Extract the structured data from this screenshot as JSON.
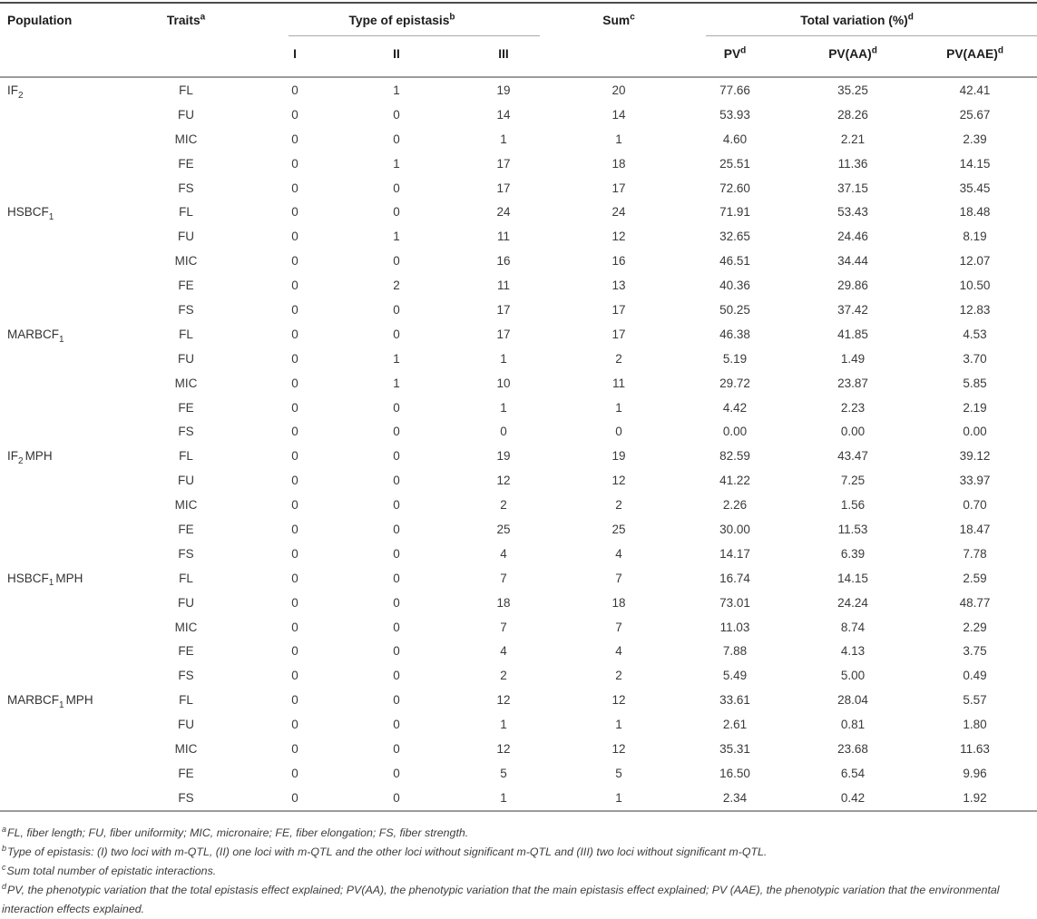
{
  "table": {
    "headers": {
      "population": "Population",
      "traits": {
        "base": "Traits",
        "sup": "a"
      },
      "epistasis_group": {
        "base": "Type of epistasis",
        "sup": "b"
      },
      "epistasis_cols": [
        "I",
        "II",
        "III"
      ],
      "sum": {
        "base": "Sum",
        "sup": "c"
      },
      "variation_group": {
        "base": "Total variation (%)",
        "sup": "d"
      },
      "variation_cols": [
        {
          "base": "PV",
          "sup": "d"
        },
        {
          "base": "PV(AA)",
          "sup": "d"
        },
        {
          "base": "PV(AAE)",
          "sup": "d"
        }
      ]
    },
    "groups": [
      {
        "population": {
          "pre": "IF",
          "sub": "2",
          "post": ""
        },
        "rows": [
          {
            "trait": "FL",
            "I": "0",
            "II": "1",
            "III": "19",
            "sum": "20",
            "pv": "77.66",
            "pv_aa": "35.25",
            "pv_aae": "42.41"
          },
          {
            "trait": "FU",
            "I": "0",
            "II": "0",
            "III": "14",
            "sum": "14",
            "pv": "53.93",
            "pv_aa": "28.26",
            "pv_aae": "25.67"
          },
          {
            "trait": "MIC",
            "I": "0",
            "II": "0",
            "III": "1",
            "sum": "1",
            "pv": "4.60",
            "pv_aa": "2.21",
            "pv_aae": "2.39"
          },
          {
            "trait": "FE",
            "I": "0",
            "II": "1",
            "III": "17",
            "sum": "18",
            "pv": "25.51",
            "pv_aa": "11.36",
            "pv_aae": "14.15"
          },
          {
            "trait": "FS",
            "I": "0",
            "II": "0",
            "III": "17",
            "sum": "17",
            "pv": "72.60",
            "pv_aa": "37.15",
            "pv_aae": "35.45"
          }
        ]
      },
      {
        "population": {
          "pre": "HSBCF",
          "sub": "1",
          "post": ""
        },
        "rows": [
          {
            "trait": "FL",
            "I": "0",
            "II": "0",
            "III": "24",
            "sum": "24",
            "pv": "71.91",
            "pv_aa": "53.43",
            "pv_aae": "18.48"
          },
          {
            "trait": "FU",
            "I": "0",
            "II": "1",
            "III": "11",
            "sum": "12",
            "pv": "32.65",
            "pv_aa": "24.46",
            "pv_aae": "8.19"
          },
          {
            "trait": "MIC",
            "I": "0",
            "II": "0",
            "III": "16",
            "sum": "16",
            "pv": "46.51",
            "pv_aa": "34.44",
            "pv_aae": "12.07"
          },
          {
            "trait": "FE",
            "I": "0",
            "II": "2",
            "III": "11",
            "sum": "13",
            "pv": "40.36",
            "pv_aa": "29.86",
            "pv_aae": "10.50"
          },
          {
            "trait": "FS",
            "I": "0",
            "II": "0",
            "III": "17",
            "sum": "17",
            "pv": "50.25",
            "pv_aa": "37.42",
            "pv_aae": "12.83"
          }
        ]
      },
      {
        "population": {
          "pre": "MARBCF",
          "sub": "1",
          "post": ""
        },
        "rows": [
          {
            "trait": "FL",
            "I": "0",
            "II": "0",
            "III": "17",
            "sum": "17",
            "pv": "46.38",
            "pv_aa": "41.85",
            "pv_aae": "4.53"
          },
          {
            "trait": "FU",
            "I": "0",
            "II": "1",
            "III": "1",
            "sum": "2",
            "pv": "5.19",
            "pv_aa": "1.49",
            "pv_aae": "3.70"
          },
          {
            "trait": "MIC",
            "I": "0",
            "II": "1",
            "III": "10",
            "sum": "11",
            "pv": "29.72",
            "pv_aa": "23.87",
            "pv_aae": "5.85"
          },
          {
            "trait": "FE",
            "I": "0",
            "II": "0",
            "III": "1",
            "sum": "1",
            "pv": "4.42",
            "pv_aa": "2.23",
            "pv_aae": "2.19"
          },
          {
            "trait": "FS",
            "I": "0",
            "II": "0",
            "III": "0",
            "sum": "0",
            "pv": "0.00",
            "pv_aa": "0.00",
            "pv_aae": "0.00"
          }
        ]
      },
      {
        "population": {
          "pre": "IF",
          "sub": "2",
          "post": "MPH"
        },
        "rows": [
          {
            "trait": "FL",
            "I": "0",
            "II": "0",
            "III": "19",
            "sum": "19",
            "pv": "82.59",
            "pv_aa": "43.47",
            "pv_aae": "39.12"
          },
          {
            "trait": "FU",
            "I": "0",
            "II": "0",
            "III": "12",
            "sum": "12",
            "pv": "41.22",
            "pv_aa": "7.25",
            "pv_aae": "33.97"
          },
          {
            "trait": "MIC",
            "I": "0",
            "II": "0",
            "III": "2",
            "sum": "2",
            "pv": "2.26",
            "pv_aa": "1.56",
            "pv_aae": "0.70"
          },
          {
            "trait": "FE",
            "I": "0",
            "II": "0",
            "III": "25",
            "sum": "25",
            "pv": "30.00",
            "pv_aa": "11.53",
            "pv_aae": "18.47"
          },
          {
            "trait": "FS",
            "I": "0",
            "II": "0",
            "III": "4",
            "sum": "4",
            "pv": "14.17",
            "pv_aa": "6.39",
            "pv_aae": "7.78"
          }
        ]
      },
      {
        "population": {
          "pre": "HSBCF",
          "sub": "1",
          "post": "MPH"
        },
        "rows": [
          {
            "trait": "FL",
            "I": "0",
            "II": "0",
            "III": "7",
            "sum": "7",
            "pv": "16.74",
            "pv_aa": "14.15",
            "pv_aae": "2.59"
          },
          {
            "trait": "FU",
            "I": "0",
            "II": "0",
            "III": "18",
            "sum": "18",
            "pv": "73.01",
            "pv_aa": "24.24",
            "pv_aae": "48.77"
          },
          {
            "trait": "MIC",
            "I": "0",
            "II": "0",
            "III": "7",
            "sum": "7",
            "pv": "11.03",
            "pv_aa": "8.74",
            "pv_aae": "2.29"
          },
          {
            "trait": "FE",
            "I": "0",
            "II": "0",
            "III": "4",
            "sum": "4",
            "pv": "7.88",
            "pv_aa": "4.13",
            "pv_aae": "3.75"
          },
          {
            "trait": "FS",
            "I": "0",
            "II": "0",
            "III": "2",
            "sum": "2",
            "pv": "5.49",
            "pv_aa": "5.00",
            "pv_aae": "0.49"
          }
        ]
      },
      {
        "population": {
          "pre": "MARBCF",
          "sub": "1",
          "post": "MPH"
        },
        "rows": [
          {
            "trait": "FL",
            "I": "0",
            "II": "0",
            "III": "12",
            "sum": "12",
            "pv": "33.61",
            "pv_aa": "28.04",
            "pv_aae": "5.57"
          },
          {
            "trait": "FU",
            "I": "0",
            "II": "0",
            "III": "1",
            "sum": "1",
            "pv": "2.61",
            "pv_aa": "0.81",
            "pv_aae": "1.80"
          },
          {
            "trait": "MIC",
            "I": "0",
            "II": "0",
            "III": "12",
            "sum": "12",
            "pv": "35.31",
            "pv_aa": "23.68",
            "pv_aae": "11.63"
          },
          {
            "trait": "FE",
            "I": "0",
            "II": "0",
            "III": "5",
            "sum": "5",
            "pv": "16.50",
            "pv_aa": "6.54",
            "pv_aae": "9.96"
          },
          {
            "trait": "FS",
            "I": "0",
            "II": "0",
            "III": "1",
            "sum": "1",
            "pv": "2.34",
            "pv_aa": "0.42",
            "pv_aae": "1.92"
          }
        ]
      }
    ]
  },
  "footnotes": [
    {
      "sup": "a",
      "text": "FL, fiber length; FU, fiber uniformity; MIC, micronaire; FE, fiber elongation; FS, fiber strength."
    },
    {
      "sup": "b",
      "text": "Type of epistasis: (I) two loci with m-QTL, (II) one loci with m-QTL and the other loci without significant m-QTL and (III) two loci without significant m-QTL."
    },
    {
      "sup": "c",
      "text": "Sum total number of epistatic interactions."
    },
    {
      "sup": "d",
      "text": "PV, the phenotypic variation that the total epistasis effect explained; PV(AA), the phenotypic variation that the main epistasis effect explained; PV (AAE), the phenotypic variation that the environmental interaction effects explained."
    }
  ]
}
